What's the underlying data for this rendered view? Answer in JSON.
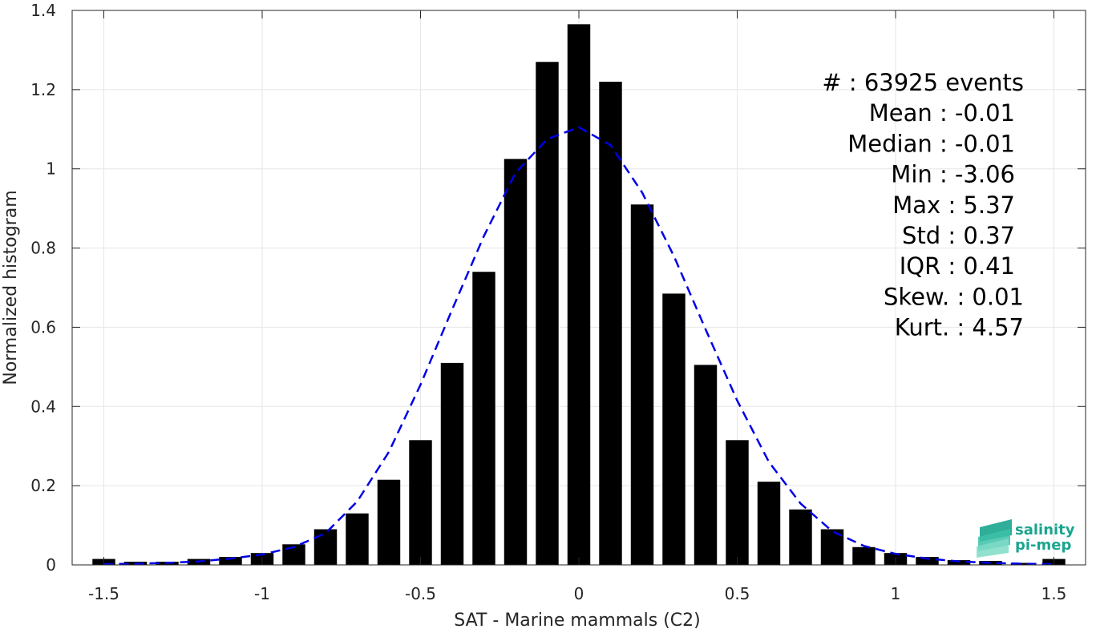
{
  "chart_data": {
    "type": "bar",
    "xlabel": "SAT - Marine mammals (C2)",
    "ylabel": "Normalized histogram",
    "xlim": [
      -1.6,
      1.6
    ],
    "ylim": [
      0,
      1.4
    ],
    "xticks": [
      -1.5,
      -1,
      -0.5,
      0,
      0.5,
      1,
      1.5
    ],
    "xtick_labels": [
      "-1.5",
      "-1",
      "-0.5",
      "0",
      "0.5",
      "1",
      "1.5"
    ],
    "yticks": [
      0,
      0.2,
      0.4,
      0.6,
      0.8,
      1,
      1.2,
      1.4
    ],
    "ytick_labels": [
      "0",
      "0.2",
      "0.4",
      "0.6",
      "0.8",
      "1",
      "1.2",
      "1.4"
    ],
    "grid": true,
    "bar_color": "#000000",
    "fit_color": "#0000e6",
    "bins": {
      "x": [
        -1.5,
        -1.4,
        -1.3,
        -1.2,
        -1.1,
        -1.0,
        -0.9,
        -0.8,
        -0.7,
        -0.6,
        -0.5,
        -0.4,
        -0.3,
        -0.2,
        -0.1,
        0.0,
        0.1,
        0.2,
        0.3,
        0.4,
        0.5,
        0.6,
        0.7,
        0.8,
        0.9,
        1.0,
        1.1,
        1.2,
        1.3,
        1.4,
        1.5
      ],
      "values": [
        0.015,
        0.008,
        0.008,
        0.015,
        0.02,
        0.03,
        0.052,
        0.09,
        0.13,
        0.215,
        0.315,
        0.51,
        0.74,
        1.025,
        1.27,
        1.365,
        1.22,
        0.91,
        0.685,
        0.505,
        0.315,
        0.21,
        0.14,
        0.09,
        0.045,
        0.03,
        0.02,
        0.012,
        0.01,
        0.005,
        0.015
      ]
    },
    "fit": {
      "x": [
        -1.5,
        -1.4,
        -1.3,
        -1.2,
        -1.1,
        -1.0,
        -0.9,
        -0.8,
        -0.7,
        -0.6,
        -0.5,
        -0.4,
        -0.3,
        -0.2,
        -0.1,
        0.0,
        0.1,
        0.2,
        0.3,
        0.4,
        0.5,
        0.6,
        0.7,
        0.8,
        0.9,
        1.0,
        1.1,
        1.2,
        1.3,
        1.4,
        1.5
      ],
      "values": [
        0.002,
        0.003,
        0.005,
        0.009,
        0.016,
        0.026,
        0.045,
        0.08,
        0.16,
        0.285,
        0.455,
        0.645,
        0.83,
        0.99,
        1.075,
        1.105,
        1.06,
        0.94,
        0.78,
        0.595,
        0.415,
        0.26,
        0.155,
        0.085,
        0.048,
        0.028,
        0.016,
        0.009,
        0.005,
        0.003,
        0.002
      ]
    },
    "stats": [
      "#  : 63925 events",
      "Mean : -0.01",
      "Median : -0.01",
      "Min : -3.06",
      "Max : 5.37",
      "Std : 0.37",
      "IQR : 0.41",
      "Skew. : 0.01",
      "Kurt. : 4.57"
    ]
  },
  "logo": {
    "line1": "salinity",
    "line2": "pi-mep",
    "color": "#1aa58e"
  }
}
